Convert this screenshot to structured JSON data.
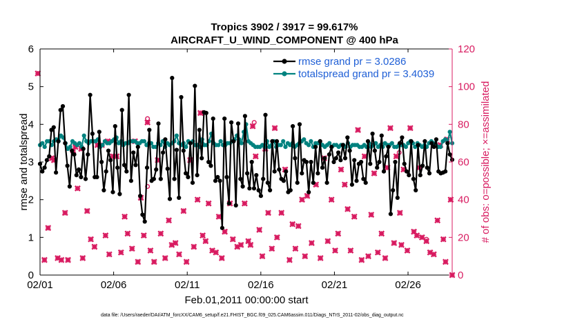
{
  "chart_data": {
    "type": "line",
    "title_line1": "Tropics 3902 / 3917 = 99.617%",
    "title_line2": "AIRCRAFT_U_WIND_COMPONENT @ 400 hPa",
    "xlabel": "Feb.01,2011 00:00:00 start",
    "ylabel_left": "rmse and totalspread",
    "ylabel_right": "# of obs: o=possible; ×=assimilated",
    "xlim": [
      0,
      28
    ],
    "ylim_left": [
      0,
      6
    ],
    "ylim_right": [
      0,
      120
    ],
    "x_tick_values": [
      0,
      5,
      10,
      15,
      20,
      25
    ],
    "x_tick_labels": [
      "02/01",
      "02/06",
      "02/11",
      "02/16",
      "02/21",
      "02/26"
    ],
    "y_left_ticks": [
      "0",
      "1",
      "2",
      "3",
      "4",
      "5",
      "6"
    ],
    "y_right_ticks": [
      "0",
      "20",
      "40",
      "60",
      "80",
      "100",
      "120"
    ],
    "colors": {
      "rmse": "#000000",
      "spread": "#00827f",
      "obs": "#d81b60",
      "legend_text": "#1f5fd6"
    },
    "series": [
      {
        "name": "rmse",
        "legend": "rmse grand pr = 3.0286",
        "axis": "left",
        "values": [
          2.95,
          2.75,
          2.85,
          3.05,
          3.15,
          3.85,
          3.92,
          2.72,
          3.55,
          4.38,
          4.48,
          3.5,
          2.9,
          2.35,
          3.3,
          3.2,
          2.65,
          2.8,
          2.6,
          3.35,
          2.55,
          3.2,
          4.78,
          3.75,
          2.6,
          2.6,
          3.8,
          3.0,
          2.25,
          2.75,
          3.3,
          3.05,
          2.2,
          3.95,
          2.85,
          2.15,
          4.38,
          2.92,
          2.75,
          4.78,
          2.5,
          3.25,
          2.92,
          3.4,
          2.1,
          1.6,
          1.42,
          2.85,
          3.85,
          2.5,
          2.55,
          2.8,
          4.02,
          2.55,
          3.25,
          3.6,
          2.82,
          2.02,
          5.23,
          2.55,
          3.32,
          2.05,
          4.72,
          3.3,
          2.7,
          2.6,
          3.5,
          2.45,
          5.02,
          2.65,
          3.85,
          3.1,
          4.32,
          4.3,
          3.0,
          2.9,
          4.15,
          2.5,
          2.6,
          2.5,
          1.25,
          4.15,
          2.6,
          1.9,
          4.05,
          3.55,
          1.85,
          4.02,
          2.55,
          2.35,
          4.22,
          2.7,
          2.3,
          3.0,
          2.3,
          2.65,
          2.25,
          2.1,
          2.55,
          4.25,
          2.45,
          2.25,
          3.55,
          2.75,
          3.55,
          2.8,
          2.55,
          2.5,
          2.75,
          2.2,
          2.25,
          3.95,
          3.1,
          2.45,
          4.0,
          2.7,
          3.05,
          3.0,
          2.2,
          3.0,
          2.45,
          3.4,
          2.7,
          3.55,
          2.85,
          3.1,
          2.45,
          3.2,
          3.4,
          3.0,
          3.1,
          3.25,
          3.05,
          3.45,
          3.1,
          3.65,
          3.3,
          2.4,
          3.05,
          2.5,
          2.95,
          3.0,
          2.55,
          2.45,
          3.55,
          2.95,
          3.75,
          3.3,
          2.85,
          3.0,
          3.7,
          2.75,
          3.15,
          3.4,
          1.62,
          2.25,
          3.0,
          2.05,
          3.5,
          3.65,
          2.95,
          2.75,
          2.65,
          3.55,
          2.55,
          2.25,
          3.45,
          2.65,
          2.9,
          3.55,
          2.85,
          2.7,
          3.5,
          3.4,
          3.6,
          2.75,
          2.7,
          2.72,
          2.75,
          3.5,
          3.2,
          3.06
        ]
      },
      {
        "name": "totalspread",
        "legend": "totalspread grand pr = 3.4039",
        "axis": "left",
        "values": [
          3.45,
          3.5,
          3.4,
          3.55,
          3.55,
          3.45,
          3.55,
          3.6,
          3.55,
          3.7,
          3.65,
          3.5,
          3.35,
          3.4,
          3.55,
          3.5,
          3.45,
          3.5,
          3.4,
          3.7,
          3.55,
          3.5,
          3.55,
          3.55,
          3.55,
          3.6,
          3.4,
          3.45,
          3.55,
          3.5,
          3.5,
          3.55,
          3.6,
          3.65,
          3.5,
          3.55,
          3.45,
          3.5,
          3.5,
          3.55,
          3.55,
          3.55,
          3.5,
          3.5,
          3.55,
          3.55,
          3.45,
          3.5,
          3.5,
          3.4,
          3.4,
          3.5,
          3.45,
          3.55,
          3.4,
          3.5,
          3.45,
          3.5,
          3.55,
          3.7,
          3.5,
          3.45,
          3.5,
          3.4,
          3.55,
          3.5,
          3.55,
          3.45,
          3.45,
          3.4,
          3.6,
          3.45,
          3.45,
          3.55,
          3.75,
          3.5,
          3.45,
          3.45,
          3.55,
          3.45,
          3.45,
          3.5,
          3.5,
          3.55,
          3.6,
          3.7,
          3.6,
          3.5,
          3.8,
          4.0,
          3.55,
          3.5,
          3.45,
          3.4,
          3.4,
          3.4,
          3.45,
          3.4,
          3.55,
          3.4,
          3.45,
          3.55,
          3.4,
          3.45,
          3.45,
          3.55,
          3.4,
          3.5,
          3.45,
          3.5,
          3.4,
          3.45,
          3.5,
          3.55,
          3.6,
          3.5,
          3.45,
          3.55,
          3.4,
          3.5,
          3.5,
          3.5,
          3.45,
          3.4,
          3.45,
          3.5,
          3.4,
          3.45,
          3.45,
          3.4,
          3.45,
          3.45,
          3.4,
          3.5,
          3.4,
          3.45,
          3.45,
          3.45,
          3.4,
          3.4,
          3.45,
          3.4,
          3.5,
          3.4,
          3.45,
          3.5,
          3.4,
          3.45,
          3.4,
          3.5,
          3.45,
          3.45,
          3.5,
          3.4,
          3.4,
          3.45,
          3.45,
          3.45,
          3.4,
          3.5,
          3.55,
          3.5,
          3.4,
          3.5,
          3.45,
          3.4,
          3.45,
          3.4,
          3.5,
          3.55,
          3.5,
          3.45,
          3.4,
          3.4,
          3.55,
          3.6,
          3.5,
          3.8,
          3.5
        ]
      }
    ],
    "assimilated_obs": {
      "axis": "right",
      "points": [
        [
          -0.15,
          107
        ],
        [
          0.3,
          8
        ],
        [
          0.55,
          25
        ],
        [
          0.8,
          62
        ],
        [
          0.95,
          61
        ],
        [
          1.2,
          9
        ],
        [
          1.45,
          8
        ],
        [
          1.7,
          33
        ],
        [
          1.9,
          8
        ],
        [
          2.25,
          66
        ],
        [
          2.4,
          68
        ],
        [
          2.55,
          46
        ],
        [
          2.8,
          67
        ],
        [
          2.9,
          9
        ],
        [
          3.2,
          34
        ],
        [
          3.45,
          19
        ],
        [
          3.7,
          15
        ],
        [
          3.9,
          69
        ],
        [
          4.2,
          69
        ],
        [
          4.45,
          21
        ],
        [
          4.6,
          71
        ],
        [
          4.7,
          11
        ],
        [
          4.95,
          63
        ],
        [
          5.2,
          63
        ],
        [
          5.5,
          12
        ],
        [
          5.75,
          31
        ],
        [
          5.95,
          22
        ],
        [
          6.25,
          14
        ],
        [
          6.45,
          71
        ],
        [
          6.65,
          7
        ],
        [
          6.85,
          41
        ],
        [
          7.05,
          21
        ],
        [
          7.3,
          81
        ],
        [
          7.5,
          13
        ],
        [
          7.75,
          7
        ],
        [
          8.0,
          61
        ],
        [
          8.2,
          22
        ],
        [
          8.5,
          9
        ],
        [
          8.75,
          29
        ],
        [
          8.95,
          16
        ],
        [
          9.2,
          17
        ],
        [
          9.45,
          11
        ],
        [
          9.75,
          34
        ],
        [
          9.95,
          7
        ],
        [
          10.2,
          61
        ],
        [
          10.45,
          15
        ],
        [
          10.7,
          40
        ],
        [
          10.9,
          86
        ],
        [
          11.05,
          21
        ],
        [
          11.25,
          18
        ],
        [
          11.45,
          38
        ],
        [
          11.7,
          13
        ],
        [
          11.95,
          12
        ],
        [
          12.15,
          31
        ],
        [
          12.35,
          9
        ],
        [
          12.55,
          23
        ],
        [
          12.9,
          38
        ],
        [
          13.1,
          19
        ],
        [
          13.4,
          15
        ],
        [
          13.65,
          16
        ],
        [
          13.9,
          38
        ],
        [
          14.15,
          18
        ],
        [
          14.3,
          16
        ],
        [
          14.45,
          79
        ],
        [
          14.65,
          63
        ],
        [
          14.9,
          24
        ],
        [
          15.1,
          10
        ],
        [
          15.3,
          67
        ],
        [
          15.5,
          33
        ],
        [
          15.75,
          14
        ],
        [
          15.95,
          78
        ],
        [
          16.1,
          20
        ],
        [
          16.4,
          33
        ],
        [
          16.65,
          56
        ],
        [
          16.95,
          8
        ],
        [
          17.15,
          27
        ],
        [
          17.35,
          14
        ],
        [
          17.55,
          26
        ],
        [
          17.8,
          40
        ],
        [
          18.0,
          10
        ],
        [
          18.15,
          42
        ],
        [
          18.45,
          17
        ],
        [
          18.75,
          48
        ],
        [
          19.05,
          9
        ],
        [
          19.3,
          62
        ],
        [
          19.55,
          18
        ],
        [
          19.8,
          40
        ],
        [
          20.05,
          13
        ],
        [
          20.25,
          22
        ],
        [
          20.45,
          56
        ],
        [
          20.7,
          48
        ],
        [
          20.9,
          35
        ],
        [
          21.1,
          13
        ],
        [
          21.35,
          31
        ],
        [
          21.6,
          77
        ],
        [
          21.85,
          8
        ],
        [
          22.05,
          63
        ],
        [
          22.3,
          10
        ],
        [
          22.5,
          32
        ],
        [
          22.7,
          54
        ],
        [
          22.95,
          12
        ],
        [
          23.2,
          22
        ],
        [
          23.45,
          9
        ],
        [
          23.6,
          57
        ],
        [
          23.8,
          78
        ],
        [
          24.05,
          17
        ],
        [
          24.2,
          63
        ],
        [
          24.45,
          33
        ],
        [
          24.55,
          16
        ],
        [
          24.7,
          56
        ],
        [
          24.95,
          13
        ],
        [
          25.15,
          78
        ],
        [
          25.4,
          23
        ],
        [
          25.6,
          21
        ],
        [
          25.75,
          57
        ],
        [
          25.95,
          20
        ],
        [
          26.25,
          18
        ],
        [
          26.5,
          12
        ],
        [
          26.75,
          11
        ],
        [
          27.0,
          29
        ],
        [
          27.2,
          69
        ],
        [
          27.4,
          19
        ],
        [
          27.55,
          7
        ],
        [
          27.65,
          72
        ],
        [
          27.9,
          40
        ],
        [
          28.0,
          0
        ]
      ]
    },
    "possible_obs": {
      "axis": "right",
      "points": [
        [
          7.3,
          83
        ],
        [
          7.3,
          47
        ],
        [
          14.55,
          81
        ],
        [
          24.4,
          65
        ],
        [
          26.25,
          19
        ]
      ]
    },
    "footer": "data file: /Users/raeder/DAI/ATM_forcXX/CAM6_setup/f.e21.FHIST_BGC.f09_025.CAM6assim.011/Diags_NTrS_2011-02/obs_diag_output.nc"
  }
}
